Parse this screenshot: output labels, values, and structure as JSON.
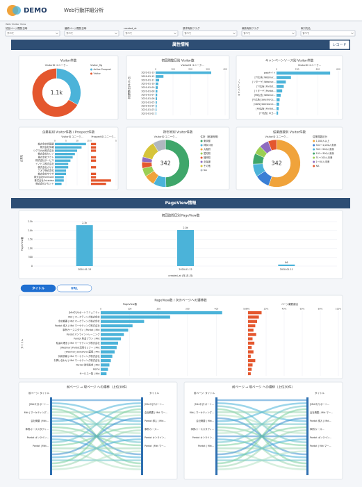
{
  "header": {
    "logo": "DEMO",
    "title": "Web行動詳細分析",
    "subtitle": "Web Visitor View"
  },
  "filters": [
    {
      "label": "初回ページ閲覧日時",
      "value": "すべて"
    },
    {
      "label": "最終ページ閲覧日時",
      "value": "すべて"
    },
    {
      "label": "created_at",
      "value": "すべて"
    },
    {
      "label": "請求有無フラグ",
      "value": "すべて"
    },
    {
      "label": "商談有無フラグ",
      "value": "すべて"
    },
    {
      "label": "取引先名",
      "value": "すべて"
    }
  ],
  "sections": {
    "attributes": "属性情報",
    "record_button": "レコード",
    "pageview": "PageView情報"
  },
  "visitor_chart": {
    "type": "pie",
    "title": "Visitor件数",
    "measure": "VisitorID ユニーク...",
    "legend_title": "Visitor_flg",
    "center_label": "1.1k",
    "categories": [
      "Active Prospect",
      "Visitor"
    ],
    "values": [
      367,
      733
    ],
    "colors": [
      "#4bb3d9",
      "#e4572e"
    ]
  },
  "first_visit_chart": {
    "type": "bar",
    "title": "初回閲覧日別 Visitor数",
    "x_label": "VisitorID ユニーク...",
    "y_label": "初回閲覧日(年-月-日)",
    "categories": [
      "2020-01-13",
      "2020-01-12",
      "2020-01-11",
      "2020-01-10",
      "2020-01-09",
      "2020-01-08",
      "2020-01-07",
      "2020-01-06",
      "2020-01-05",
      "2020-01-04",
      "2020-01-03",
      "2020-01-02"
    ],
    "values": [
      320,
      45,
      20,
      15,
      12,
      10,
      9,
      8,
      7,
      6,
      5,
      4
    ],
    "xlim": [
      0,
      400
    ],
    "xticks": [
      0,
      100,
      200,
      300,
      400
    ],
    "color": "#4bb3d9"
  },
  "campaign_chart": {
    "type": "bar",
    "title": "キャンペーンソース別 Visitor件数",
    "x_label": "VisitorID ユニーク...",
    "y_label": "キャンペーン...",
    "categories": [
      "webサイト",
      "[Y!広告] Webinar...",
      "[リターゲ] Webinar...",
      "[Y!広告] Pardot...",
      "[リターゲ] Pardot...",
      "[FB広告] Webinar...",
      "[Y!広告] Salesforce...",
      "[GDN] Salesforce...",
      "[FB広告] Pardot...",
      "[Y!広告] ロゴ..."
    ],
    "values": [
      520,
      140,
      90,
      70,
      55,
      40,
      30,
      25,
      20,
      15
    ],
    "xlim": [
      0,
      600
    ],
    "xticks": [
      0,
      200,
      400,
      600
    ],
    "color": "#4bb3d9"
  },
  "company_chart": {
    "type": "bar",
    "title": "企業名別 Visitor件数 / Prospect件数",
    "y_label": "企業名",
    "categories": [
      "株式会社情報網",
      "株式会社情報",
      "シグマ九州株式会社",
      "株式会社セレン",
      "株式会社アクト",
      "株式会社サービス",
      "イノビス株式会社",
      "株式会社カサナ",
      "テヌサ株式会社",
      "株式会社サウザ",
      "株式会社Fairmode",
      "株式会社Outsidea",
      "株式会社アセント"
    ],
    "series": [
      {
        "name": "VisitorID ユニーク...",
        "color": "#4bb3d9",
        "values": [
          14,
          12,
          10,
          9,
          8,
          7,
          6,
          6,
          5,
          5,
          4,
          4,
          3
        ],
        "xlim": [
          0,
          15
        ],
        "xticks": [
          0,
          5,
          10,
          15
        ]
      },
      {
        "name": "ProspectID ユニーク...",
        "color": "#e4572e",
        "values": [
          1,
          1,
          1,
          0,
          1,
          1,
          0,
          1,
          0,
          1,
          1,
          4,
          3
        ],
        "xlim": [
          0,
          5
        ],
        "xticks": [
          0,
          5
        ]
      }
    ]
  },
  "location_chart": {
    "type": "pie",
    "title": "所在地別 Visitor件数",
    "measure": "VisitorID ユニーク...",
    "legend_title": "住所（都道府県）",
    "center_label": "342",
    "categories": [
      "東京都",
      "神奈川県",
      "大阪府",
      "愛知県",
      "福岡県",
      "北海道",
      "その他",
      "NA"
    ],
    "values": [
      170,
      30,
      25,
      20,
      15,
      12,
      40,
      30
    ],
    "colors": [
      "#3fa66a",
      "#4bb3d9",
      "#f0a33b",
      "#9bcf53",
      "#e4572e",
      "#8e6cc0",
      "#d6c43a",
      "#b0b7bf"
    ]
  },
  "employee_chart": {
    "type": "pie",
    "title": "従業員数別 Visitor件数",
    "measure": "VisitorID ユニーク...",
    "legend_title": "従業員数区分",
    "center_label": "342",
    "categories": [
      "1,000人以上",
      "501〜1,000人未満",
      "301〜500人未満",
      "101〜300人未満",
      "51〜100人未満",
      "1〜50人未満",
      "NA"
    ],
    "values": [
      190,
      35,
      30,
      25,
      20,
      22,
      20
    ],
    "colors": [
      "#f0a33b",
      "#3a7fd5",
      "#4bb3d9",
      "#3fa66a",
      "#9bcf53",
      "#8e6cc0",
      "#e4572e"
    ]
  },
  "pv_chart": {
    "type": "bar",
    "title": "初回訪問日別 PageView数",
    "x_label": "created_at (年-月-日)",
    "y_label": "PageView数",
    "categories": [
      "2020-01-13",
      "2020-01-12",
      "2020-01-11"
    ],
    "values": [
      2300,
      2030,
      86
    ],
    "value_labels": [
      "2.3k",
      "2.0k",
      "86"
    ],
    "ylim": [
      0,
      2500
    ],
    "yticks": [
      0,
      500,
      {
        "value": 1000,
        "label": "1.0k"
      },
      {
        "value": 1500,
        "label": "1.5k"
      },
      {
        "value": 2000,
        "label": "2.0k"
      },
      {
        "value": 2500,
        "label": "2.5k"
      }
    ],
    "color": "#4bb3d9"
  },
  "tabs": [
    "タイトル",
    "URL"
  ],
  "transition_chart": {
    "type": "bar",
    "title": "PageView数 / 次のページへの遷移数",
    "y_label": "タイトル",
    "categories": [
      "[Mktネ]サポートコミュニティ",
      "Mkt | マーケティング株式会社",
      "会社概要 | Mkt マーケティング株式会社",
      "Pardot 導入 | Mkt マーケティング株式会社",
      "事例・ケーススタディ | Pardot | Mkt",
      "Pardot オンライントレーニング",
      "Pardot 料金プラン | Mkt",
      "私達の理念 | Mkt マーケティング株式会社",
      "[Webinar] Pardot活用セミナー | Mkt",
      "[Webinar] Salesforce連携 | Mkt",
      "採用情報 | Mkt マーケティング株式会社",
      "お問い合わせ | Mkt マーケティング株式会社",
      "Pardot 資料請求 | Mkt",
      "Home",
      "サービス一覧 | Mkt"
    ],
    "series": [
      {
        "name": "PageView数",
        "color": "#4bb3d9",
        "values": [
          420,
          240,
          150,
          110,
          95,
          80,
          70,
          60,
          55,
          48,
          40,
          35,
          30,
          25,
          20
        ],
        "xlim": [
          0,
          500
        ],
        "xticks": [
          0,
          100,
          200,
          300,
          400,
          500
        ]
      },
      {
        "name": "ページ離脱割合",
        "color": "#e4572e",
        "values": [
          15,
          12,
          10,
          8,
          6,
          9,
          5,
          7,
          4,
          6,
          3,
          8,
          5,
          4,
          3
        ],
        "xlim": [
          0,
          100
        ],
        "xticks": [
          {
            "value": 0,
            "label": "0%"
          },
          {
            "value": 20,
            "label": "20%"
          },
          {
            "value": 40,
            "label": "40%"
          },
          {
            "value": 60,
            "label": "60%"
          },
          {
            "value": 80,
            "label": "80%"
          },
          {
            "value": 100,
            "label": "100%"
          }
        ]
      }
    ]
  },
  "sankeys": [
    {
      "title": "前ページ → 現ページ への遷移（上位30件）",
      "left_label": "前ページ: タイトル",
      "right_label": "タイトル",
      "left_nodes": [
        "[Mktネ]サポート...",
        "Mkt | マーケティング...",
        "会社概要 | Mkt...",
        "事例・ケーススタディ...",
        "Pardot オンライン...",
        "Pardot | Mkt..."
      ],
      "right_nodes": [
        "[Mktネ]サポート...",
        "会社概要 | Mkt マー...",
        "Pardot 導入 | Mkt...",
        "事例・ケース...",
        "Pardot オンライン...",
        "Pardot | Mkt マー..."
      ]
    },
    {
      "title": "前ページ → 現ページ への遷移（上位30件）",
      "left_label": "前ページ: タイトル",
      "right_label": "タイトル",
      "left_nodes": [
        "[Mktネ]サポート...",
        "Mkt | マーケティング...",
        "会社概要 | Mkt...",
        "事例・ケーススタディ...",
        "Pardot オンライン...",
        "Pardot | Mkt..."
      ],
      "right_nodes": [
        "[Mktネ]サポート...",
        "会社概要 | Mkt マー...",
        "Pardot 導入 | Mkt...",
        "事例・ケース...",
        "Pardot オンライン...",
        "Pardot | Mkt マー..."
      ]
    }
  ]
}
